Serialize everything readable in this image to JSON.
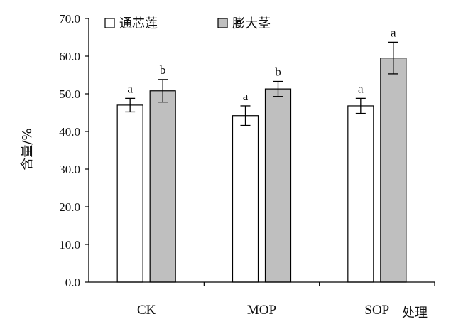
{
  "chart_data": {
    "type": "bar",
    "categories": [
      "CK",
      "MOP",
      "SOP"
    ],
    "series": [
      {
        "name": "通芯莲",
        "color": "#ffffff",
        "values": [
          47.0,
          44.2,
          46.8
        ],
        "errors": [
          1.8,
          2.6,
          2.0
        ],
        "significance": [
          "a",
          "a",
          "a"
        ]
      },
      {
        "name": "膨大茎",
        "color": "#bfbfbf",
        "values": [
          50.8,
          51.3,
          59.5
        ],
        "errors": [
          3.0,
          2.0,
          4.2
        ],
        "significance": [
          "b",
          "b",
          "a"
        ]
      }
    ],
    "ylabel": "含量/%",
    "xlabel": "处理",
    "ylim": [
      0,
      70
    ],
    "yticks": [
      "0.0",
      "10.0",
      "20.0",
      "30.0",
      "40.0",
      "50.0",
      "60.0",
      "70.0"
    ],
    "grid": false,
    "legend_position": "top-left"
  }
}
